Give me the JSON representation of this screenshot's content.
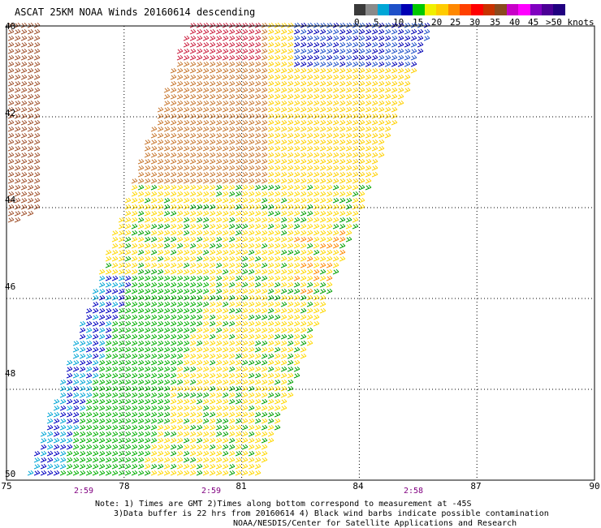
{
  "title": "ASCAT 25KM NOAA Winds 20160614 descending",
  "legend": {
    "colors": [
      "#3a3a3a",
      "#8a8a8a",
      "#00a6d6",
      "#1e50c8",
      "#0000b4",
      "#00c800",
      "#f0f000",
      "#ffcc00",
      "#ff8800",
      "#ff4000",
      "#ff0000",
      "#c83200",
      "#8a4a1e",
      "#c800c8",
      "#ff00ff",
      "#8000c0",
      "#4b0096",
      "#200080"
    ],
    "labels": [
      "0",
      "5",
      "10",
      "15",
      "20",
      "25",
      "30",
      "35",
      "40",
      "45",
      ">50 knots"
    ]
  },
  "axes": {
    "x_labels": [
      "75",
      "78",
      "81",
      "84",
      "87",
      "90"
    ],
    "y_labels": [
      "40",
      "42",
      "44",
      "46",
      "48",
      "50"
    ]
  },
  "times": [
    "2:59",
    "2:59",
    "2:58"
  ],
  "notes": [
    "Note: 1) Times are GMT 2)Times along bottom correspond to measurement at -45S",
    "3)Data buffer is 22 hrs from 20160614 4) Black wind barbs indicate possible contamination",
    "NOAA/NESDIS/Center for Satellite Applications and Research"
  ]
}
